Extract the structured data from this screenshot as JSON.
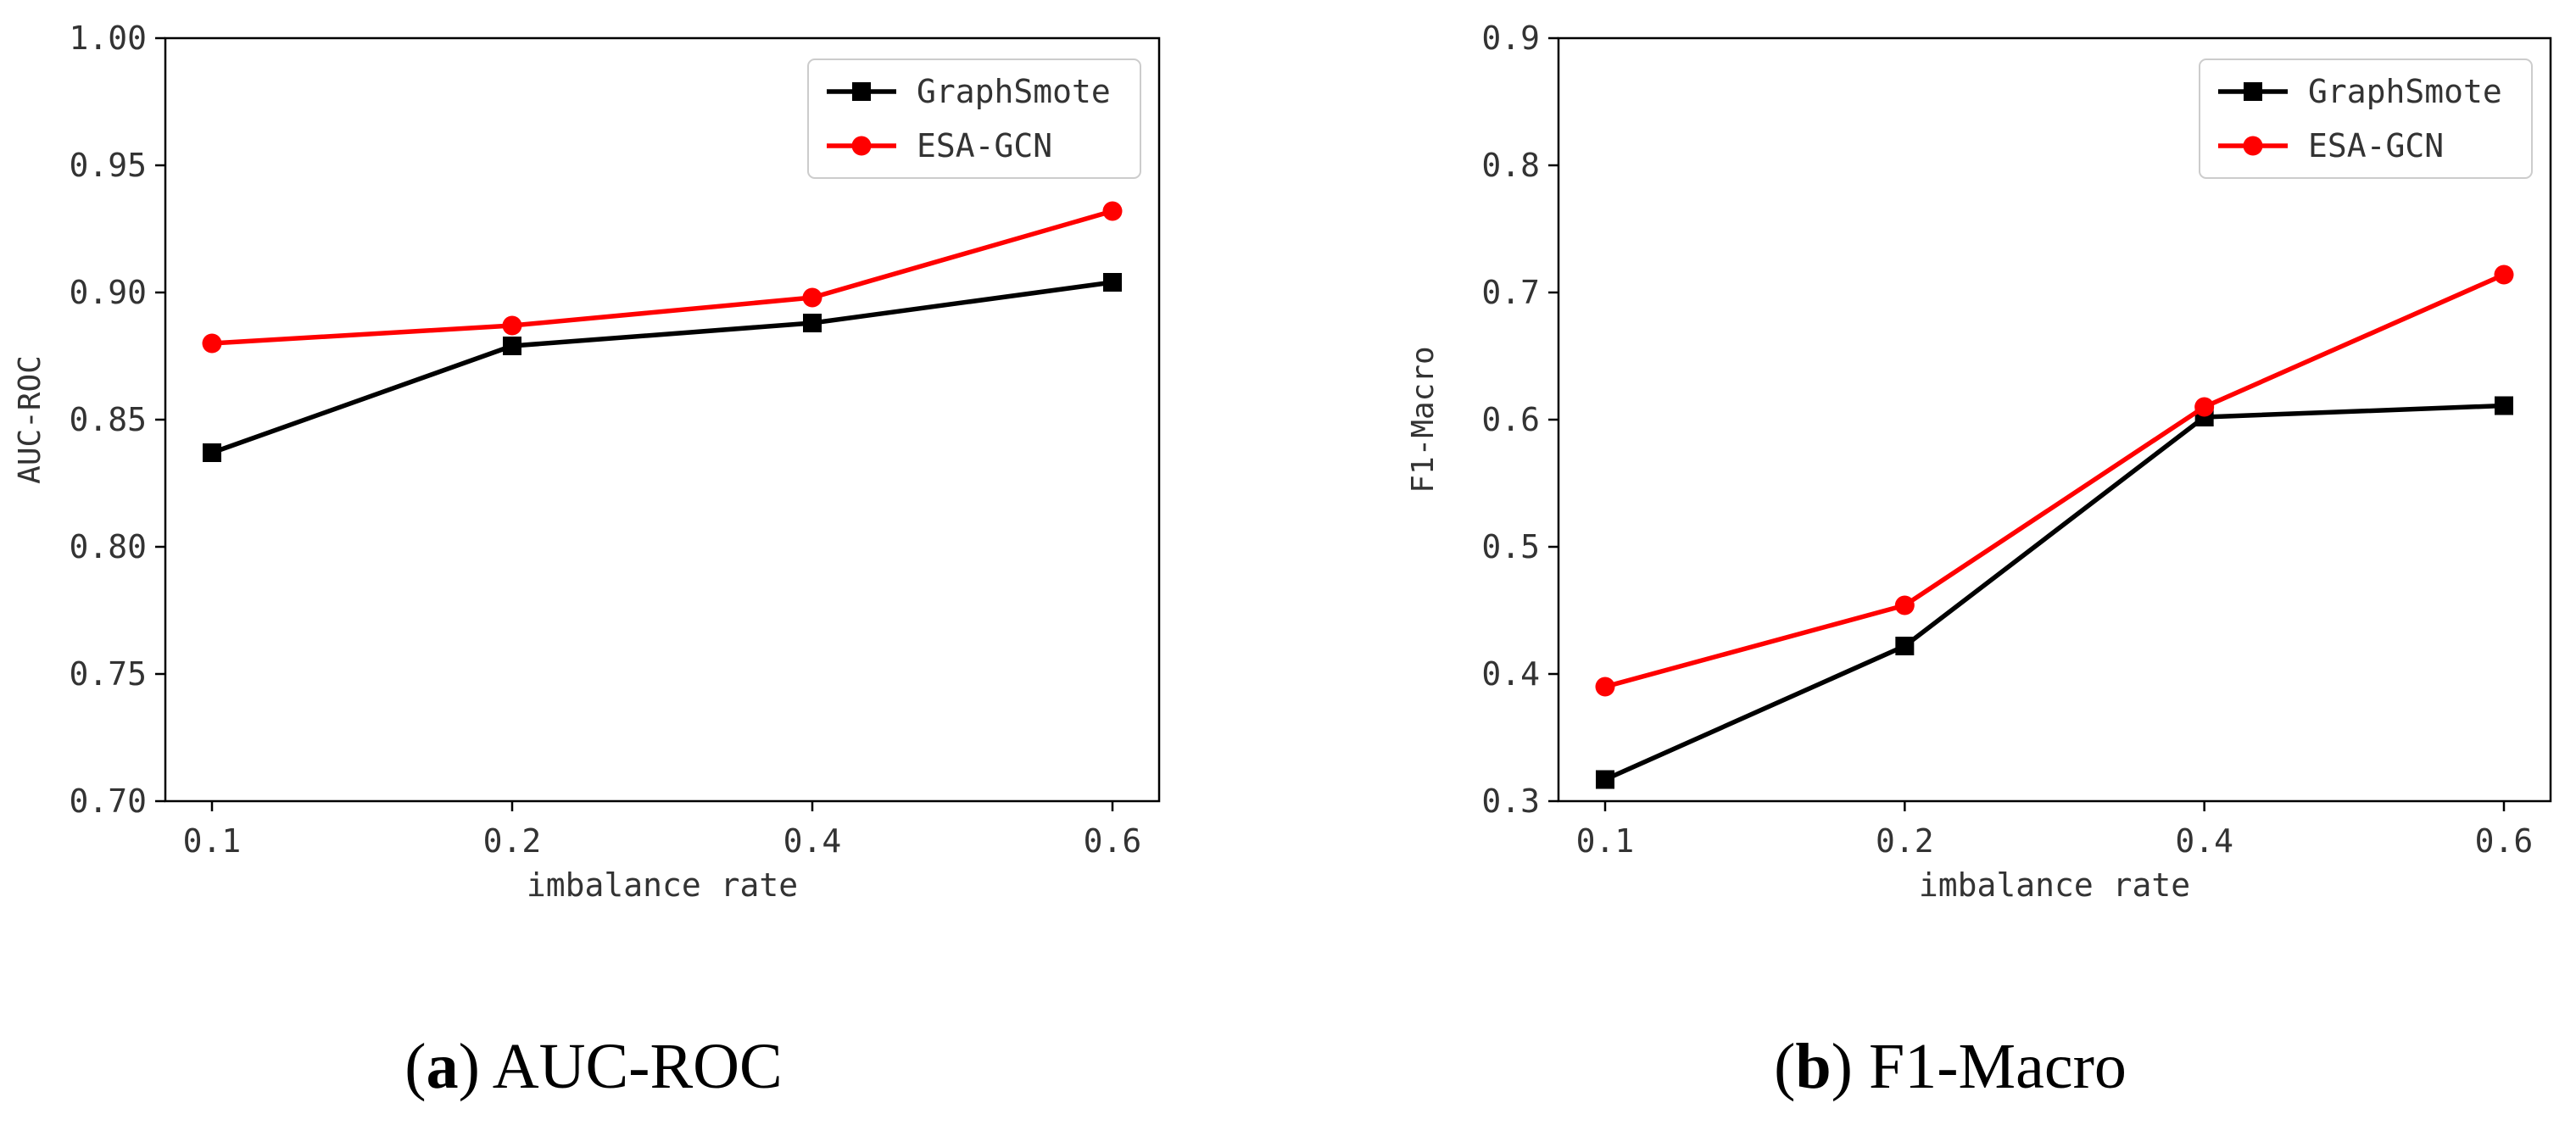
{
  "colors": {
    "graphsmote": "#000000",
    "esagcn": "#ff0000",
    "axis": "#000000",
    "text": "#333333"
  },
  "chart_data": [
    {
      "id": "a",
      "type": "line",
      "caption_label": "a",
      "caption_text": "AUC-ROC",
      "xlabel": "imbalance rate",
      "ylabel": "AUC-ROC",
      "x": [
        0.1,
        0.2,
        0.4,
        0.6
      ],
      "x_tick_labels": [
        "0.1",
        "0.2",
        "0.4",
        "0.6"
      ],
      "ylim": [
        0.7,
        1.0
      ],
      "y_ticks": [
        0.7,
        0.75,
        0.8,
        0.85,
        0.9,
        0.95,
        1.0
      ],
      "y_tick_labels": [
        "0.70",
        "0.75",
        "0.80",
        "0.85",
        "0.90",
        "0.95",
        "1.00"
      ],
      "grid": false,
      "legend_position": "top-right",
      "series": [
        {
          "name": "GraphSmote",
          "marker": "square",
          "color": "#000000",
          "values": [
            0.837,
            0.879,
            0.888,
            0.904
          ]
        },
        {
          "name": "ESA-GCN",
          "marker": "circle",
          "color": "#ff0000",
          "values": [
            0.88,
            0.887,
            0.898,
            0.932
          ]
        }
      ]
    },
    {
      "id": "b",
      "type": "line",
      "caption_label": "b",
      "caption_text": "F1-Macro",
      "xlabel": "imbalance rate",
      "ylabel": "F1-Macro",
      "x": [
        0.1,
        0.2,
        0.4,
        0.6
      ],
      "x_tick_labels": [
        "0.1",
        "0.2",
        "0.4",
        "0.6"
      ],
      "ylim": [
        0.3,
        0.9
      ],
      "y_ticks": [
        0.3,
        0.4,
        0.5,
        0.6,
        0.7,
        0.8,
        0.9
      ],
      "y_tick_labels": [
        "0.3",
        "0.4",
        "0.5",
        "0.6",
        "0.7",
        "0.8",
        "0.9"
      ],
      "grid": false,
      "legend_position": "top-right",
      "series": [
        {
          "name": "GraphSmote",
          "marker": "square",
          "color": "#000000",
          "values": [
            0.317,
            0.422,
            0.602,
            0.611
          ]
        },
        {
          "name": "ESA-GCN",
          "marker": "circle",
          "color": "#ff0000",
          "values": [
            0.39,
            0.454,
            0.61,
            0.714
          ]
        }
      ]
    }
  ]
}
